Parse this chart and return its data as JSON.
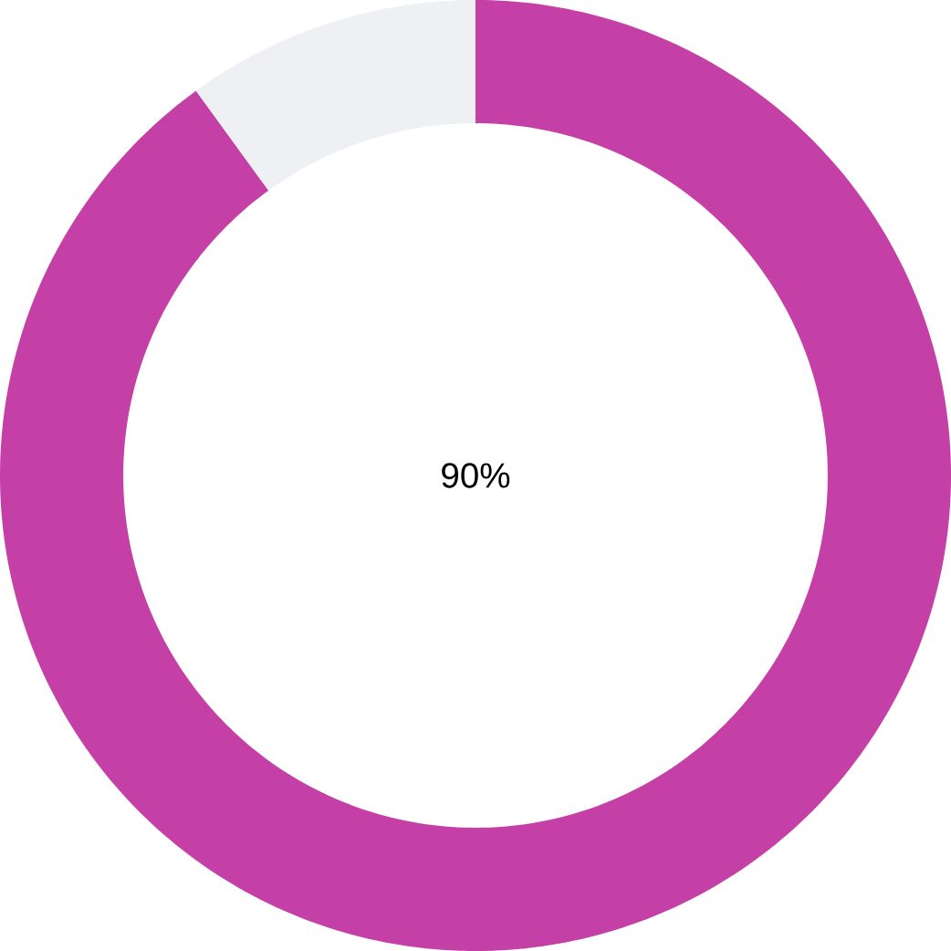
{
  "chart_data": {
    "type": "donut",
    "categories": [
      null,
      null
    ],
    "values": [
      90,
      10
    ],
    "colors": [
      "#c43fa6",
      "#eef0f4"
    ],
    "annotations": [
      "90%"
    ]
  }
}
